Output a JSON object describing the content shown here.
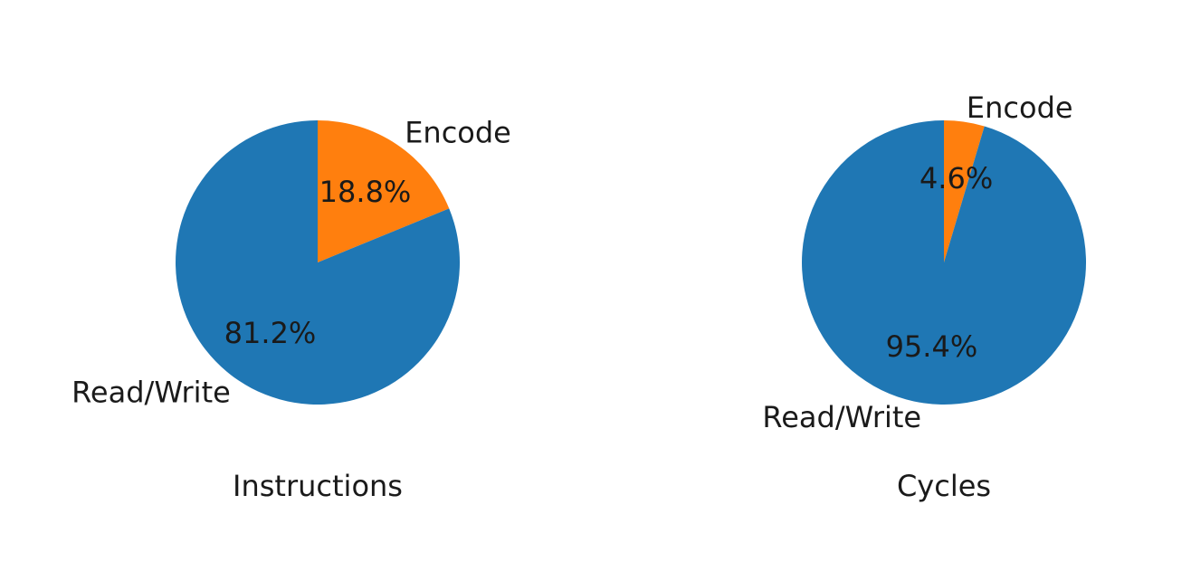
{
  "chart_data": [
    {
      "type": "pie",
      "xlabel": "Instructions",
      "labels": [
        "Encode",
        "Read/Write"
      ],
      "values": [
        18.8,
        81.2
      ],
      "pct_labels": [
        "18.8%",
        "81.2%"
      ],
      "colors": [
        "#ff7f0e",
        "#1f77b4"
      ],
      "start_angle_deg": 90,
      "direction": "clockwise"
    },
    {
      "type": "pie",
      "xlabel": "Cycles",
      "labels": [
        "Encode",
        "Read/Write"
      ],
      "values": [
        4.6,
        95.4
      ],
      "pct_labels": [
        "4.6%",
        "95.4%"
      ],
      "colors": [
        "#ff7f0e",
        "#1f77b4"
      ],
      "start_angle_deg": 90,
      "direction": "clockwise"
    }
  ]
}
